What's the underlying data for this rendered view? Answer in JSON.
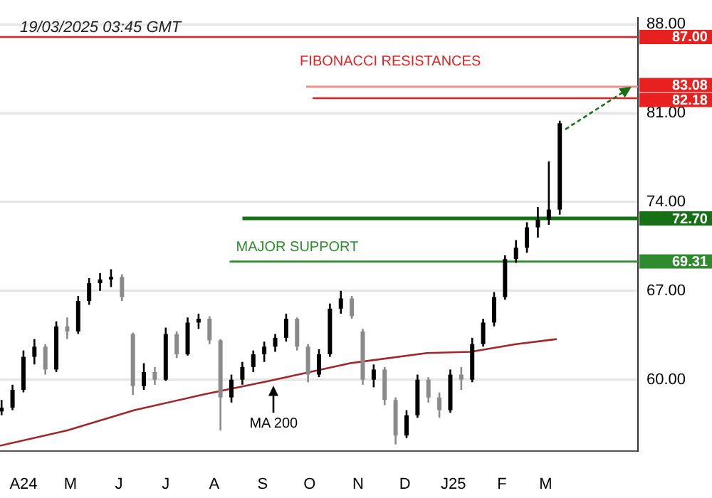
{
  "chart_data": {
    "type": "candlestick",
    "title": "19/03/2025 03:45 GMT",
    "x": [
      "2024-03-18",
      "2024-03-25",
      "2024-04-01",
      "2024-04-08",
      "2024-04-15",
      "2024-04-22",
      "2024-04-29",
      "2024-05-06",
      "2024-05-13",
      "2024-05-20",
      "2024-05-27",
      "2024-06-03",
      "2024-06-10",
      "2024-06-17",
      "2024-06-24",
      "2024-07-01",
      "2024-07-08",
      "2024-07-15",
      "2024-07-22",
      "2024-07-29",
      "2024-08-05",
      "2024-08-12",
      "2024-08-19",
      "2024-08-26",
      "2024-09-02",
      "2024-09-09",
      "2024-09-16",
      "2024-09-23",
      "2024-09-30",
      "2024-10-07",
      "2024-10-14",
      "2024-10-21",
      "2024-10-28",
      "2024-11-04",
      "2024-11-11",
      "2024-11-18",
      "2024-11-25",
      "2024-12-02",
      "2024-12-09",
      "2024-12-16",
      "2024-12-23",
      "2024-12-30",
      "2025-01-06",
      "2025-01-13",
      "2025-01-20",
      "2025-01-27",
      "2025-02-03",
      "2025-02-10",
      "2025-02-17",
      "2025-02-24",
      "2025-03-03",
      "2025-03-10"
    ],
    "ohlc": [
      [
        57.5,
        58.4,
        57.2,
        57.8
      ],
      [
        57.8,
        59.6,
        57.6,
        59.2
      ],
      [
        59.2,
        62.3,
        59.0,
        61.8
      ],
      [
        61.8,
        63.2,
        61.2,
        62.6
      ],
      [
        62.6,
        62.8,
        60.4,
        60.8
      ],
      [
        60.8,
        64.6,
        60.6,
        64.2
      ],
      [
        64.2,
        64.9,
        63.2,
        63.8
      ],
      [
        63.8,
        66.6,
        63.6,
        66.2
      ],
      [
        66.2,
        68.0,
        65.9,
        67.6
      ],
      [
        67.6,
        68.4,
        67.0,
        67.9
      ],
      [
        67.9,
        68.7,
        67.3,
        68.1
      ],
      [
        68.1,
        68.3,
        66.2,
        66.5
      ],
      [
        63.6,
        63.7,
        58.8,
        59.5
      ],
      [
        59.5,
        61.3,
        59.2,
        60.6
      ],
      [
        60.6,
        61.0,
        59.6,
        60.0
      ],
      [
        60.0,
        64.1,
        59.9,
        63.6
      ],
      [
        63.6,
        63.8,
        61.7,
        62.0
      ],
      [
        62.0,
        64.9,
        61.9,
        64.5
      ],
      [
        64.5,
        65.2,
        64.0,
        64.8
      ],
      [
        64.8,
        65.0,
        62.8,
        63.1
      ],
      [
        63.1,
        63.2,
        56.0,
        58.6
      ],
      [
        58.6,
        60.4,
        58.2,
        60.0
      ],
      [
        60.0,
        61.4,
        59.6,
        61.0
      ],
      [
        61.0,
        62.3,
        60.6,
        62.0
      ],
      [
        62.0,
        63.0,
        61.4,
        62.6
      ],
      [
        62.6,
        63.6,
        62.2,
        63.3
      ],
      [
        63.3,
        65.2,
        63.0,
        64.8
      ],
      [
        64.8,
        64.9,
        62.3,
        62.6
      ],
      [
        62.6,
        62.8,
        59.8,
        60.4
      ],
      [
        60.4,
        62.4,
        60.2,
        62.0
      ],
      [
        62.0,
        66.0,
        61.8,
        65.6
      ],
      [
        65.6,
        67.0,
        65.2,
        66.4
      ],
      [
        66.4,
        66.6,
        64.8,
        65.0
      ],
      [
        63.8,
        64.0,
        59.6,
        60.0
      ],
      [
        60.0,
        61.2,
        59.4,
        60.8
      ],
      [
        60.8,
        61.0,
        58.0,
        58.4
      ],
      [
        58.4,
        58.6,
        54.9,
        55.6
      ],
      [
        55.6,
        57.6,
        55.4,
        57.2
      ],
      [
        57.2,
        60.4,
        57.0,
        60.0
      ],
      [
        60.0,
        60.2,
        58.2,
        58.6
      ],
      [
        58.6,
        59.0,
        57.0,
        57.6
      ],
      [
        57.6,
        60.8,
        57.4,
        60.4
      ],
      [
        60.4,
        61.0,
        59.2,
        60.0
      ],
      [
        60.0,
        63.3,
        59.8,
        62.8
      ],
      [
        62.8,
        64.8,
        62.6,
        64.5
      ],
      [
        64.5,
        66.9,
        64.2,
        66.5
      ],
      [
        66.5,
        69.8,
        66.3,
        69.5
      ],
      [
        69.5,
        71.0,
        69.2,
        70.4
      ],
      [
        70.4,
        72.4,
        70.0,
        72.0
      ],
      [
        72.0,
        73.6,
        71.2,
        72.6
      ],
      [
        72.6,
        77.2,
        72.2,
        73.4
      ],
      [
        73.4,
        80.4,
        73.0,
        80.2
      ]
    ],
    "colors": [
      "#000000",
      "#000000",
      "#000000",
      "#000000",
      "#8a8a8a",
      "#000000",
      "#8a8a8a",
      "#000000",
      "#000000",
      "#000000",
      "#000000",
      "#8a8a8a",
      "#8a8a8a",
      "#000000",
      "#8a8a8a",
      "#000000",
      "#8a8a8a",
      "#000000",
      "#000000",
      "#8a8a8a",
      "#8a8a8a",
      "#000000",
      "#000000",
      "#000000",
      "#000000",
      "#000000",
      "#000000",
      "#8a8a8a",
      "#8a8a8a",
      "#000000",
      "#000000",
      "#000000",
      "#8a8a8a",
      "#8a8a8a",
      "#000000",
      "#8a8a8a",
      "#8a8a8a",
      "#000000",
      "#000000",
      "#8a8a8a",
      "#8a8a8a",
      "#000000",
      "#8a8a8a",
      "#000000",
      "#000000",
      "#000000",
      "#000000",
      "#000000",
      "#000000",
      "#000000",
      "#000000",
      "#000000"
    ],
    "series": [
      {
        "type": "line",
        "color": "#a0262a",
        "x": [
          "2024-03-17",
          "2024-04-29",
          "2024-06-11",
          "2024-07-24",
          "2024-09-05",
          "2024-10-27",
          "2024-12-15",
          "2025-01-12",
          "2025-02-10",
          "2025-03-08"
        ],
        "values": [
          54.8,
          56.0,
          57.6,
          58.8,
          59.9,
          61.3,
          62.1,
          62.2,
          62.8,
          63.2
        ]
      }
    ],
    "xlim": [
      "2024-03-17",
      "2025-04-29"
    ],
    "xticks": [
      {
        "value": "2024-04-01",
        "label": "A24"
      },
      {
        "value": "2024-05-01",
        "label": "M"
      },
      {
        "value": "2024-06-01",
        "label": "J"
      },
      {
        "value": "2024-07-01",
        "label": "J"
      },
      {
        "value": "2024-08-01",
        "label": "A"
      },
      {
        "value": "2024-09-01",
        "label": "S"
      },
      {
        "value": "2024-10-01",
        "label": "O"
      },
      {
        "value": "2024-11-01",
        "label": "N"
      },
      {
        "value": "2024-12-01",
        "label": "D"
      },
      {
        "value": "2025-01-01",
        "label": "J25"
      },
      {
        "value": "2025-02-01",
        "label": "F"
      },
      {
        "value": "2025-03-01",
        "label": "M"
      }
    ],
    "ylim": [
      54.4,
      88.5
    ],
    "yticks": [
      {
        "value": 60,
        "label": "60.00"
      },
      {
        "value": 67,
        "label": "67.00"
      },
      {
        "value": 74,
        "label": "74.00"
      },
      {
        "value": 81,
        "label": "81.00"
      },
      {
        "value": 88,
        "label": "88.00"
      }
    ],
    "grid": "y",
    "legend": false,
    "ref_lines": [
      {
        "axis": "y",
        "value": 87.0,
        "label": "87.00",
        "color": "#e82020"
      },
      {
        "axis": "y",
        "value": 83.08,
        "label": "83.08",
        "color": "#f08a8a"
      },
      {
        "axis": "y",
        "value": 82.18,
        "label": "82.18",
        "color": "#e82020"
      },
      {
        "axis": "y",
        "value": 72.7,
        "label": "72.70",
        "color": "#167016"
      },
      {
        "axis": "y",
        "value": 69.31,
        "label": "69.31",
        "color": "#2e8b2e"
      }
    ],
    "annotations": [
      "FIBONACCI RESISTANCES",
      "MAJOR SUPPORT",
      {
        "text": "MA 200",
        "x": "2024-09-08",
        "y": 59.9
      }
    ]
  }
}
